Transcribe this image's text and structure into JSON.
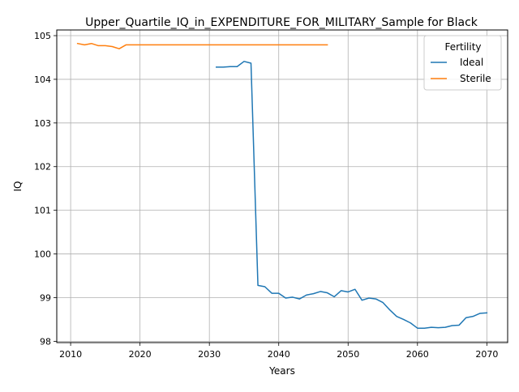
{
  "chart_data": {
    "type": "line",
    "title": "Upper_Quartile_IQ_in_EXPENDITURE_FOR_MILITARY_Sample for Black",
    "xlabel": "Years",
    "ylabel": "IQ",
    "xlim": [
      2008,
      2073
    ],
    "ylim": [
      97.97,
      105.13
    ],
    "xticks": [
      2010,
      2020,
      2030,
      2040,
      2050,
      2060,
      2070
    ],
    "yticks": [
      98,
      99,
      100,
      101,
      102,
      103,
      104,
      105
    ],
    "grid": true,
    "legend": {
      "title": "Fertility",
      "position": "top-right"
    },
    "series": [
      {
        "name": "Ideal",
        "color": "#1f77b4",
        "x": [
          2031,
          2032,
          2033,
          2034,
          2035,
          2036,
          2037,
          2038,
          2039,
          2040,
          2041,
          2042,
          2043,
          2044,
          2045,
          2046,
          2047,
          2048,
          2049,
          2050,
          2051,
          2052,
          2053,
          2054,
          2055,
          2056,
          2057,
          2058,
          2059,
          2060,
          2061,
          2062,
          2063,
          2064,
          2065,
          2066,
          2067,
          2068,
          2069,
          2070
        ],
        "y": [
          104.28,
          104.28,
          104.29,
          104.29,
          104.41,
          104.37,
          99.28,
          99.25,
          99.1,
          99.1,
          98.99,
          99.01,
          98.97,
          99.06,
          99.09,
          99.14,
          99.11,
          99.02,
          99.16,
          99.13,
          99.19,
          98.94,
          98.99,
          98.97,
          98.89,
          98.72,
          98.57,
          98.5,
          98.42,
          98.3,
          98.3,
          98.32,
          98.31,
          98.32,
          98.36,
          98.37,
          98.54,
          98.57,
          98.64,
          98.65
        ]
      },
      {
        "name": "Sterile",
        "color": "#ff7f0e",
        "x": [
          2011,
          2012,
          2013,
          2014,
          2015,
          2016,
          2017,
          2018,
          2019,
          2020,
          2021,
          2022,
          2023,
          2024,
          2025,
          2026,
          2027,
          2028,
          2029,
          2030,
          2031,
          2032,
          2033,
          2034,
          2035,
          2036,
          2037,
          2038,
          2039,
          2040,
          2041,
          2042,
          2043,
          2044,
          2045,
          2046,
          2047
        ],
        "y": [
          104.82,
          104.79,
          104.82,
          104.77,
          104.77,
          104.75,
          104.7,
          104.79,
          104.79,
          104.79,
          104.79,
          104.79,
          104.79,
          104.79,
          104.79,
          104.79,
          104.79,
          104.79,
          104.79,
          104.79,
          104.79,
          104.79,
          104.79,
          104.79,
          104.79,
          104.79,
          104.79,
          104.79,
          104.79,
          104.79,
          104.79,
          104.79,
          104.79,
          104.79,
          104.79,
          104.79,
          104.79
        ]
      }
    ]
  }
}
